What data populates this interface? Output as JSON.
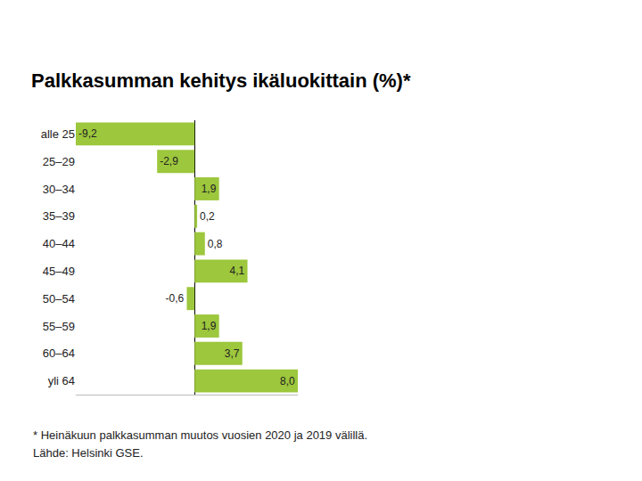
{
  "chart_data": {
    "type": "bar",
    "title": "Palkkasumman kehitys ikäluokittain (%)*",
    "categories": [
      "alle 25",
      "25–29",
      "30–34",
      "35–39",
      "40–44",
      "45–49",
      "50–54",
      "55–59",
      "60–64",
      "yli 64"
    ],
    "values": [
      -9.2,
      -2.9,
      1.9,
      0.2,
      0.8,
      4.1,
      -0.6,
      1.9,
      3.7,
      8.0
    ],
    "value_labels": [
      "-9,2",
      "-2,9",
      "1,9",
      "0,2",
      "0,8",
      "4,1",
      "-0,6",
      "1,9",
      "3,7",
      "8,0"
    ],
    "color": "#9dc73c",
    "orientation": "horizontal",
    "data_labels": true,
    "tick_labels": "y",
    "grid": false,
    "xlim": [
      -9.2,
      8.0
    ],
    "xticks": [
      0
    ],
    "annotations": [
      "* Heinäkuun palkkasumman muutos vuosien 2020 ja 2019 välillä.",
      "Lähde: Helsinki GSE."
    ]
  }
}
